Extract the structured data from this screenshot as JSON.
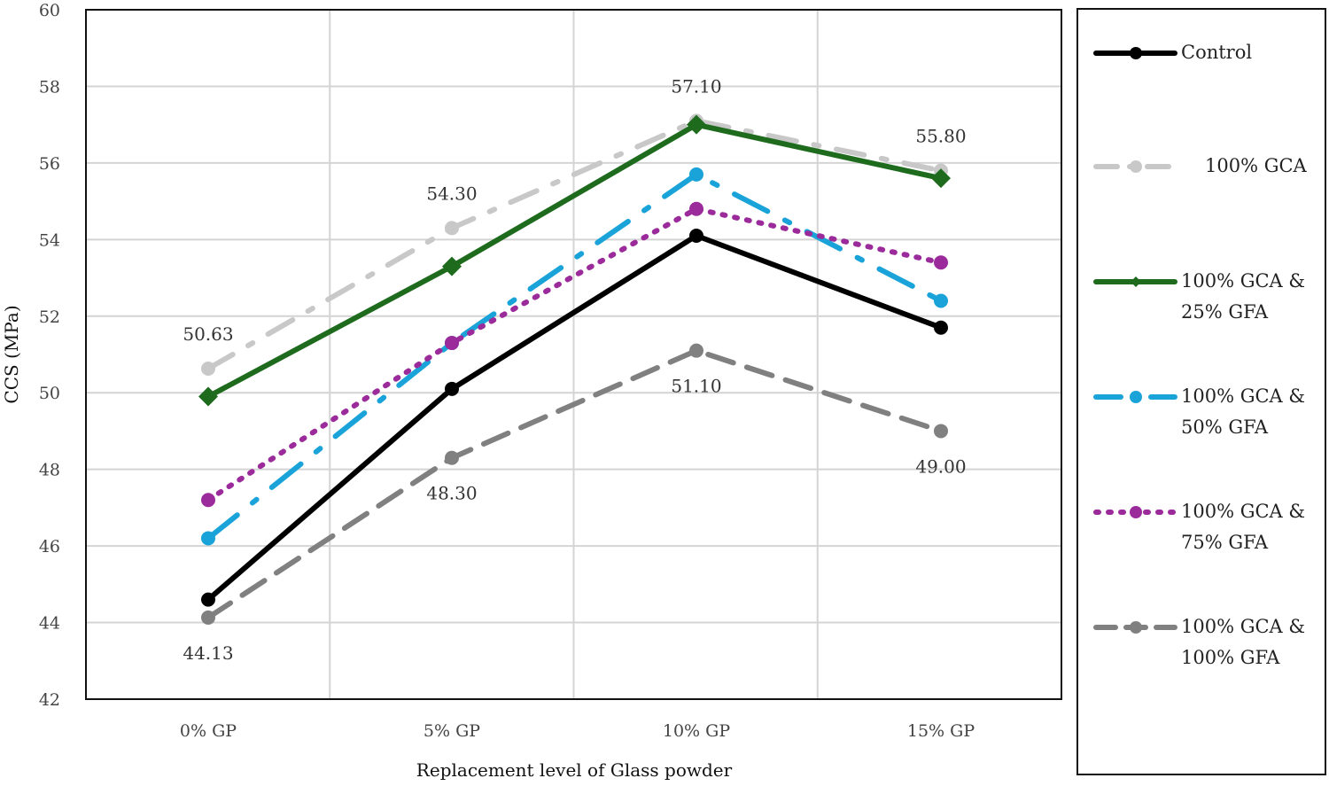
{
  "chart_data": {
    "type": "line",
    "title": "",
    "xlabel": "Replacement level of Glass powder",
    "ylabel": "CCS (MPa)",
    "categories": [
      "0% GP",
      "5% GP",
      "10% GP",
      "15% GP"
    ],
    "ylim": [
      42,
      60
    ],
    "yticks": [
      "42",
      "44",
      "46",
      "48",
      "50",
      "52",
      "54",
      "56",
      "58",
      "60"
    ],
    "grid": true,
    "legend_position": "right",
    "series": [
      {
        "name": "Control",
        "legend_lines": [
          "Control"
        ],
        "values": [
          44.6,
          50.1,
          54.1,
          51.7
        ],
        "color": "#000000",
        "dash": "solid",
        "marker": "circle"
      },
      {
        "name": "100% GCA",
        "legend_lines": [
          "100% GCA"
        ],
        "values": [
          50.63,
          54.3,
          57.1,
          55.8
        ],
        "color": "#c8c8c8",
        "dash": "dashdot",
        "marker": "circle"
      },
      {
        "name": "100% GCA & 25% GFA",
        "legend_lines": [
          "100% GCA &",
          "25% GFA"
        ],
        "values": [
          49.9,
          53.3,
          57.0,
          55.6
        ],
        "color": "#1e6b1e",
        "dash": "solid",
        "marker": "diamond"
      },
      {
        "name": "100% GCA & 50% GFA",
        "legend_lines": [
          "100% GCA &",
          "50% GFA"
        ],
        "values": [
          46.2,
          51.3,
          55.7,
          52.4
        ],
        "color": "#1aa3d9",
        "dash": "longdashdot",
        "marker": "circle"
      },
      {
        "name": "100% GCA & 75% GFA",
        "legend_lines": [
          "100% GCA &",
          "75% GFA"
        ],
        "values": [
          47.2,
          51.3,
          54.8,
          53.4
        ],
        "color": "#9b2a9b",
        "dash": "dot",
        "marker": "circle"
      },
      {
        "name": "100% GCA & 100% GFA",
        "legend_lines": [
          "100% GCA &",
          "100% GFA"
        ],
        "values": [
          44.13,
          48.3,
          51.1,
          49.0
        ],
        "color": "#808080",
        "dash": "dash",
        "marker": "circle"
      }
    ],
    "data_labels": [
      {
        "series": "100% GCA",
        "index": 0,
        "text": "50.63",
        "pos": "above"
      },
      {
        "series": "100% GCA",
        "index": 1,
        "text": "54.30",
        "pos": "above"
      },
      {
        "series": "100% GCA",
        "index": 2,
        "text": "57.10",
        "pos": "above"
      },
      {
        "series": "100% GCA",
        "index": 3,
        "text": "55.80",
        "pos": "above"
      },
      {
        "series": "100% GCA & 100% GFA",
        "index": 0,
        "text": "44.13",
        "pos": "below"
      },
      {
        "series": "100% GCA & 100% GFA",
        "index": 1,
        "text": "48.30",
        "pos": "below"
      },
      {
        "series": "100% GCA & 100% GFA",
        "index": 2,
        "text": "51.10",
        "pos": "below"
      },
      {
        "series": "100% GCA & 100% GFA",
        "index": 3,
        "text": "49.00",
        "pos": "below"
      }
    ]
  }
}
